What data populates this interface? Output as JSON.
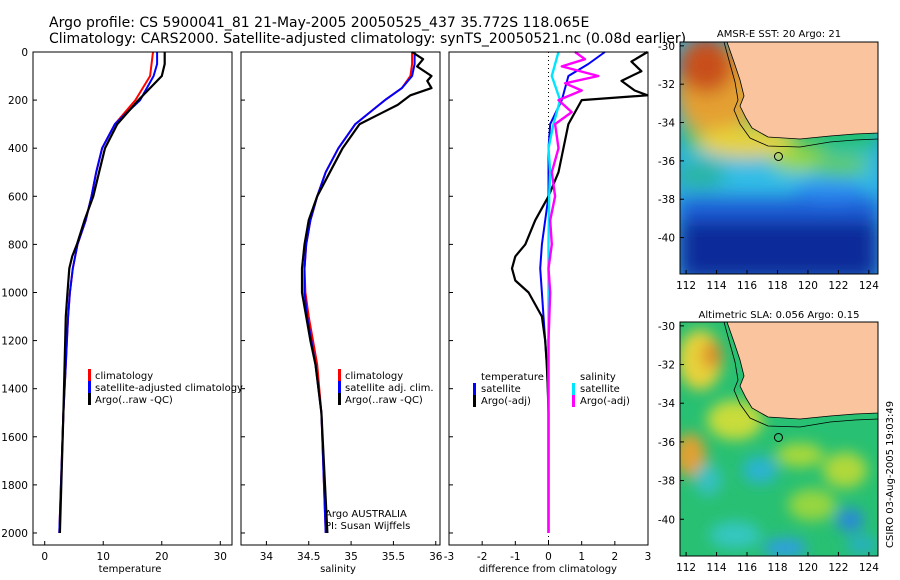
{
  "header": {
    "line1": "Argo profile: CS 5900041_81 21-May-2005 20050525_437 35.772S 118.065E",
    "line2": "Climatology: CARS2000. Satellite-adjusted climatology: synTS_20050521.nc (0.08d earlier)"
  },
  "credit": "CSIRO 03-Aug-2005 19:03:49",
  "depth_ticks": [
    "0",
    "200",
    "400",
    "600",
    "800",
    "1000",
    "1200",
    "1400",
    "1600",
    "1800",
    "2000"
  ],
  "colors": {
    "climatology": "#ff0000",
    "satellite": "#0000ff",
    "argo": "#000000",
    "sal_satellite": "#00e5ff",
    "sal_argo": "#ff00ff",
    "land": "#f9c49e",
    "coast": "#000000"
  },
  "chart_data": [
    {
      "type": "line",
      "id": "temperature",
      "xlabel": "temperature",
      "ylabel": "",
      "xlim": [
        -2,
        32
      ],
      "ylim": [
        2050,
        0
      ],
      "xticks": [
        0,
        10,
        20,
        30
      ],
      "xtick_labels": [
        "0",
        "10",
        "20",
        "30"
      ],
      "legend": [
        "climatology",
        "satellite-adjusted climatology",
        "Argo(..raw -QC)"
      ],
      "series": [
        {
          "name": "climatology",
          "depth": [
            0,
            100,
            200,
            300,
            400,
            500,
            600,
            700,
            800,
            900,
            1000,
            1100,
            1200,
            1300,
            1400,
            1500,
            2000
          ],
          "values": [
            18.5,
            18.0,
            15.5,
            12.0,
            9.8,
            8.8,
            8.0,
            7.0,
            5.6,
            4.8,
            4.3,
            4.0,
            3.8,
            3.6,
            3.4,
            3.2,
            2.5
          ]
        },
        {
          "name": "satellite-adjusted climatology",
          "depth": [
            0,
            50,
            100,
            200,
            300,
            400,
            500,
            600,
            700,
            800,
            900,
            1000,
            1100,
            1200,
            1300,
            1400,
            1500,
            2000
          ],
          "values": [
            19.2,
            19.2,
            18.6,
            16.3,
            12.0,
            9.8,
            8.8,
            8.0,
            7.0,
            5.6,
            4.8,
            4.3,
            4.0,
            3.8,
            3.6,
            3.4,
            3.2,
            2.5
          ]
        },
        {
          "name": "Argo(..raw -QC)",
          "depth": [
            0,
            50,
            100,
            200,
            300,
            400,
            500,
            600,
            700,
            800,
            850,
            900,
            1000,
            1100,
            1200,
            1300,
            1400,
            1500,
            2000
          ],
          "values": [
            20.5,
            20.5,
            20.0,
            16.0,
            12.4,
            10.3,
            9.3,
            8.3,
            6.8,
            5.5,
            4.7,
            4.2,
            3.9,
            3.6,
            3.5,
            3.4,
            3.3,
            3.2,
            2.6
          ]
        }
      ]
    },
    {
      "type": "line",
      "id": "salinity",
      "xlabel": "salinity",
      "ylabel": "",
      "xlim": [
        33.7,
        36.05
      ],
      "ylim": [
        2050,
        0
      ],
      "xticks": [
        34,
        34.5,
        35,
        35.5,
        36
      ],
      "xtick_labels": [
        "34",
        "34.5",
        "35",
        "35.5",
        "36"
      ],
      "legend": [
        "climatology",
        "satellite adj. clim.",
        "Argo(..raw -QC)"
      ],
      "annotation": [
        "Argo AUSTRALIA",
        "PI: Susan Wijffels"
      ],
      "series": [
        {
          "name": "climatology",
          "depth": [
            0,
            50,
            100,
            150,
            200,
            300,
            400,
            500,
            600,
            700,
            800,
            900,
            1000,
            1100,
            1200,
            1300,
            1500,
            2000
          ],
          "values": [
            35.72,
            35.72,
            35.7,
            35.6,
            35.4,
            35.05,
            34.85,
            34.7,
            34.6,
            34.52,
            34.47,
            34.45,
            34.46,
            34.5,
            34.55,
            34.6,
            34.65,
            34.7
          ]
        },
        {
          "name": "satellite adj. clim.",
          "depth": [
            0,
            50,
            100,
            150,
            200,
            300,
            400,
            500,
            600,
            700,
            800,
            900,
            1000,
            1100,
            1200,
            1300,
            1500,
            2000
          ],
          "values": [
            35.75,
            35.75,
            35.72,
            35.6,
            35.4,
            35.05,
            34.85,
            34.7,
            34.6,
            34.52,
            34.47,
            34.45,
            34.45,
            34.48,
            34.53,
            34.58,
            34.65,
            34.7
          ]
        },
        {
          "name": "Argo(..raw -QC)",
          "depth": [
            0,
            30,
            60,
            100,
            120,
            150,
            180,
            220,
            300,
            400,
            500,
            600,
            700,
            800,
            900,
            1000,
            1100,
            1200,
            1300,
            1500,
            2000
          ],
          "values": [
            35.72,
            35.85,
            35.78,
            35.95,
            35.9,
            35.95,
            35.7,
            35.55,
            35.1,
            34.9,
            34.75,
            34.6,
            34.5,
            34.45,
            34.42,
            34.42,
            34.47,
            34.52,
            34.58,
            34.65,
            34.72
          ]
        }
      ]
    },
    {
      "type": "line",
      "id": "difference",
      "xlabel": "difference from climatology",
      "ylabel": "",
      "xlim": [
        -3,
        3
      ],
      "ylim": [
        2050,
        0
      ],
      "xticks": [
        -3,
        -2,
        -1,
        0,
        1,
        2,
        3
      ],
      "xtick_labels": [
        "-3",
        "-2",
        "-1",
        "0",
        "1",
        "2",
        "3"
      ],
      "legend_left": [
        "temperature",
        "satellite",
        "Argo(-adj)"
      ],
      "legend_right": [
        "salinity",
        "satellite",
        "Argo(-adj)"
      ],
      "series": [
        {
          "name": "temperature satellite",
          "depth": [
            0,
            50,
            100,
            200,
            300,
            400,
            600,
            700,
            800,
            900,
            1000,
            1100,
            1200,
            1300,
            1400,
            1500,
            1700,
            2000
          ],
          "values": [
            1.7,
            1.2,
            0.6,
            0.4,
            0.05,
            0,
            0,
            -0.1,
            -0.2,
            -0.25,
            -0.2,
            -0.15,
            -0.1,
            -0.05,
            -0.02,
            0,
            0,
            0
          ]
        },
        {
          "name": "temperature Argo(-adj)",
          "depth": [
            0,
            40,
            80,
            120,
            160,
            180,
            200,
            300,
            500,
            600,
            700,
            800,
            850,
            900,
            950,
            1000,
            1100,
            1200,
            1300,
            1400,
            1500,
            1700,
            2000
          ],
          "values": [
            3.0,
            2.5,
            2.8,
            2.2,
            2.6,
            3.0,
            1.0,
            0.6,
            0.3,
            0,
            -0.4,
            -0.7,
            -1.0,
            -1.1,
            -1.0,
            -0.6,
            -0.2,
            -0.1,
            -0.05,
            -0.02,
            0,
            0,
            0
          ]
        },
        {
          "name": "salinity satellite",
          "depth": [
            0,
            50,
            100,
            200,
            300,
            400,
            500,
            600,
            800,
            1000,
            1200,
            1400,
            1600,
            1800,
            2000
          ],
          "values": [
            0.3,
            0.2,
            0.1,
            0.35,
            0.15,
            0,
            0.05,
            0.02,
            0,
            0,
            0,
            0,
            0,
            0,
            0
          ]
        },
        {
          "name": "salinity Argo(-adj)",
          "depth": [
            0,
            30,
            60,
            100,
            130,
            160,
            200,
            250,
            300,
            400,
            500,
            600,
            700,
            800,
            900,
            1000,
            1200,
            1500,
            2000
          ],
          "values": [
            0.8,
            1.1,
            0.4,
            1.5,
            0.5,
            1.0,
            0.3,
            0.7,
            0.2,
            0.3,
            0.1,
            0.2,
            0.05,
            0.1,
            0,
            0.05,
            0,
            0,
            0
          ]
        }
      ]
    },
    {
      "type": "heatmap",
      "id": "sst-map",
      "title": "AMSR-E SST: 20 Argo: 21",
      "xlim": [
        111.6,
        124.6
      ],
      "ylim": [
        -41.9,
        -29.8
      ],
      "xticks": [
        112,
        114,
        116,
        118,
        120,
        122,
        124
      ],
      "yticks": [
        -30,
        -32,
        -34,
        -36,
        -38,
        -40
      ],
      "float_position": [
        118.065,
        -35.772
      ]
    },
    {
      "type": "heatmap",
      "id": "sla-map",
      "title": "Altimetric SLA: 0.056 Argo: 0.15",
      "xlim": [
        111.6,
        124.6
      ],
      "ylim": [
        -41.9,
        -29.8
      ],
      "xticks": [
        112,
        114,
        116,
        118,
        120,
        122,
        124
      ],
      "yticks": [
        -30,
        -32,
        -34,
        -36,
        -38,
        -40
      ],
      "float_position": [
        118.065,
        -35.772
      ]
    }
  ]
}
